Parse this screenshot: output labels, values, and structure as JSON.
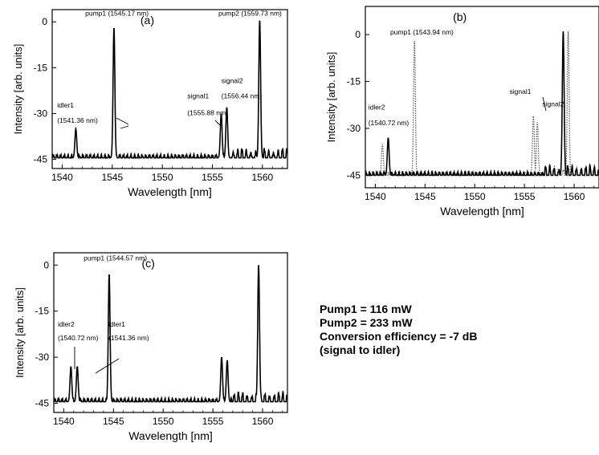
{
  "chart_data": [
    {
      "type": "line",
      "panel_label": "(a)",
      "xlabel": "Wavelength [nm]",
      "ylabel": "Intensity [arb. units]",
      "xlim": [
        1539,
        1562.5
      ],
      "ylim": [
        -48,
        4
      ],
      "xticks": [
        1540,
        1545,
        1550,
        1555,
        1560
      ],
      "yticks": [
        -45,
        -30,
        -15,
        0
      ],
      "grid": false,
      "series": [
        {
          "baseline": -44.5,
          "ripple_start": 1556.5,
          "peaks": [
            {
              "x": 1541.36,
              "y": -35
            },
            {
              "x": 1545.17,
              "y": -2
            },
            {
              "x": 1555.88,
              "y": -30
            },
            {
              "x": 1556.44,
              "y": -28
            },
            {
              "x": 1559.73,
              "y": 0.5
            }
          ]
        }
      ],
      "annotations": [
        {
          "text": "pump1 (1545.17 nm)",
          "x": 1542.3,
          "y": 2
        },
        {
          "text": "pump2 (1559.73 nm)",
          "x": 1555.6,
          "y": 2
        },
        {
          "text": "idler1",
          "x": 1539.5,
          "y": -28
        },
        {
          "text": "(1541.36 nm)",
          "x": 1539.5,
          "y": -33
        },
        {
          "text": "signal1",
          "x": 1552.5,
          "y": -25
        },
        {
          "text": "(1555.88 nm)",
          "x": 1552.5,
          "y": -30.5
        },
        {
          "text": "signal2",
          "x": 1555.9,
          "y": -20
        },
        {
          "text": "(1556.44 nm)",
          "x": 1555.9,
          "y": -25
        }
      ]
    },
    {
      "type": "line",
      "panel_label": "(b)",
      "xlabel": "Wavelength [nm]",
      "ylabel": "Intensity [arb. units]",
      "xlim": [
        1539,
        1562.5
      ],
      "ylim": [
        -49,
        9
      ],
      "xticks": [
        1540,
        1545,
        1550,
        1555,
        1560
      ],
      "yticks": [
        -45,
        -30,
        -15,
        0
      ],
      "grid": false,
      "series": [
        {
          "style": "dotted",
          "baseline": -45,
          "ripple_start": 1557,
          "peaks": [
            {
              "x": 1540.72,
              "y": -35
            },
            {
              "x": 1543.94,
              "y": -2
            },
            {
              "x": 1555.9,
              "y": -26
            },
            {
              "x": 1556.3,
              "y": -28
            },
            {
              "x": 1559.4,
              "y": 1
            }
          ]
        },
        {
          "style": "solid",
          "baseline": -45,
          "ripple_start": 1557,
          "peaks": [
            {
              "x": 1541.3,
              "y": -33
            },
            {
              "x": 1558.9,
              "y": 1
            }
          ]
        }
      ],
      "annotations": [
        {
          "text": "pump1 (1543.94 nm)",
          "x": 1541.5,
          "y": 0
        },
        {
          "text": "idler2",
          "x": 1539.3,
          "y": -24
        },
        {
          "text": "(1540.72 nm)",
          "x": 1539.3,
          "y": -29
        },
        {
          "text": "signal1",
          "x": 1553.5,
          "y": -19
        },
        {
          "text": "signal2",
          "x": 1556.8,
          "y": -23
        }
      ]
    },
    {
      "type": "line",
      "panel_label": "(c)",
      "xlabel": "Wavelength [nm]",
      "ylabel": "Intensity [arb. units]",
      "xlim": [
        1539,
        1562.5
      ],
      "ylim": [
        -48,
        4
      ],
      "xticks": [
        1540,
        1545,
        1550,
        1555,
        1560
      ],
      "yticks": [
        -45,
        -30,
        -15,
        0
      ],
      "grid": false,
      "series": [
        {
          "baseline": -44.5,
          "ripple_start": 1557,
          "peaks": [
            {
              "x": 1540.72,
              "y": -33
            },
            {
              "x": 1541.36,
              "y": -33
            },
            {
              "x": 1544.57,
              "y": -3
            },
            {
              "x": 1555.88,
              "y": -30
            },
            {
              "x": 1556.44,
              "y": -31
            },
            {
              "x": 1559.6,
              "y": 0
            }
          ]
        }
      ],
      "annotations": [
        {
          "text": "pump1 (1544.57 nm)",
          "x": 1542.0,
          "y": 1.5
        },
        {
          "text": "idler2",
          "x": 1539.4,
          "y": -20
        },
        {
          "text": "(1540.72 nm)",
          "x": 1539.4,
          "y": -24.5
        },
        {
          "text": "idler1",
          "x": 1544.5,
          "y": -20
        },
        {
          "text": "(1541.36 nm)",
          "x": 1544.5,
          "y": -24.5
        }
      ]
    }
  ],
  "note": {
    "line1": "Pump1 = 116 mW",
    "line2": "Pump2 = 233 mW",
    "line3": "Conversion efficiency = -7 dB",
    "line4": "(signal to idler)"
  }
}
